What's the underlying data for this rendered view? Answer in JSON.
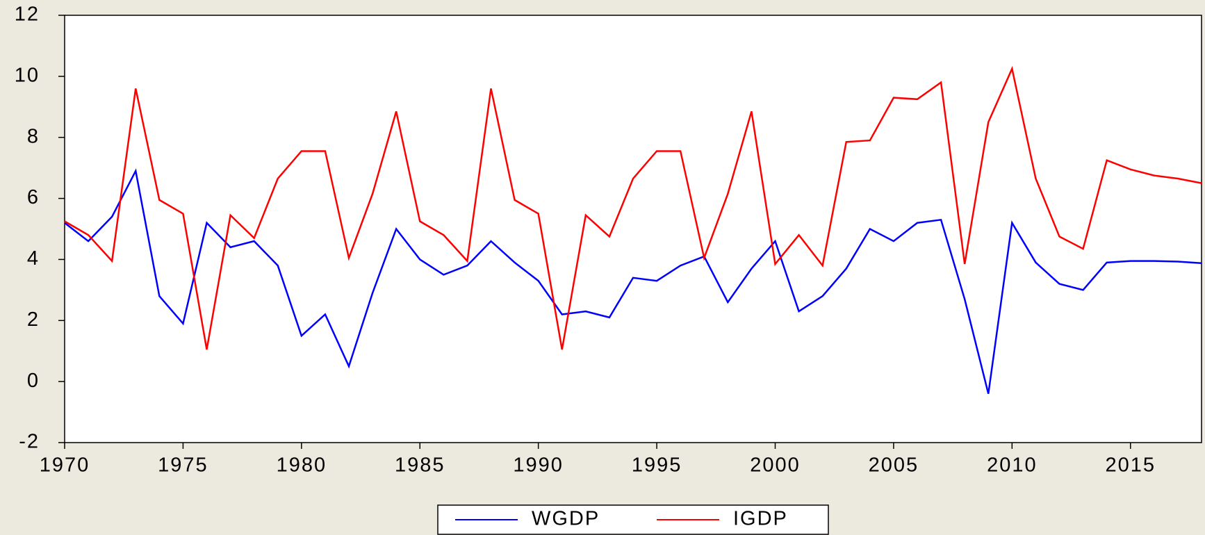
{
  "chart_data": {
    "type": "line",
    "x": [
      1970,
      1971,
      1972,
      1973,
      1974,
      1975,
      1976,
      1977,
      1978,
      1979,
      1980,
      1981,
      1982,
      1983,
      1984,
      1985,
      1986,
      1987,
      1988,
      1989,
      1990,
      1991,
      1992,
      1993,
      1994,
      1995,
      1996,
      1997,
      1998,
      1999,
      2000,
      2001,
      2002,
      2003,
      2004,
      2005,
      2006,
      2007,
      2008,
      2009,
      2010,
      2011,
      2012,
      2013,
      2014,
      2015,
      2016,
      2017,
      2018
    ],
    "series": [
      {
        "name": "WGDP",
        "color": "#0000ff",
        "values": [
          5.2,
          4.6,
          5.4,
          6.9,
          2.8,
          1.9,
          5.2,
          4.4,
          4.6,
          3.8,
          1.5,
          2.2,
          0.5,
          2.9,
          5.0,
          4.0,
          3.5,
          3.8,
          4.6,
          3.9,
          3.3,
          2.2,
          2.3,
          2.1,
          3.4,
          3.3,
          3.8,
          4.1,
          2.6,
          3.7,
          4.6,
          2.3,
          2.8,
          3.7,
          5.0,
          4.6,
          5.2,
          5.3,
          2.7,
          -0.4,
          5.2,
          3.9,
          3.2,
          3.0,
          3.9,
          3.95,
          3.95,
          3.93,
          3.88
        ]
      },
      {
        "name": "IGDP",
        "color": "#ff0000",
        "values": [
          5.25,
          4.8,
          3.95,
          9.6,
          5.95,
          5.5,
          1.05,
          5.45,
          4.7,
          6.65,
          7.55,
          7.55,
          4.05,
          6.15,
          8.85,
          5.25,
          4.8,
          3.95,
          9.6,
          5.95,
          5.5,
          1.05,
          5.45,
          4.75,
          6.65,
          7.55,
          7.55,
          4.05,
          6.15,
          8.85,
          3.85,
          4.8,
          3.8,
          7.85,
          7.9,
          9.3,
          9.25,
          9.8,
          3.85,
          8.5,
          10.25,
          6.65,
          4.75,
          4.35,
          7.25,
          6.95,
          6.75,
          6.65,
          6.5
        ]
      }
    ],
    "xlim": [
      1970,
      2018
    ],
    "xticks": [
      1970,
      1975,
      1980,
      1985,
      1990,
      1995,
      2000,
      2005,
      2010,
      2015
    ],
    "ylim": [
      -2,
      12
    ],
    "yticks": [
      -2,
      0,
      2,
      4,
      6,
      8,
      10,
      12
    ],
    "legend": "bottom"
  }
}
